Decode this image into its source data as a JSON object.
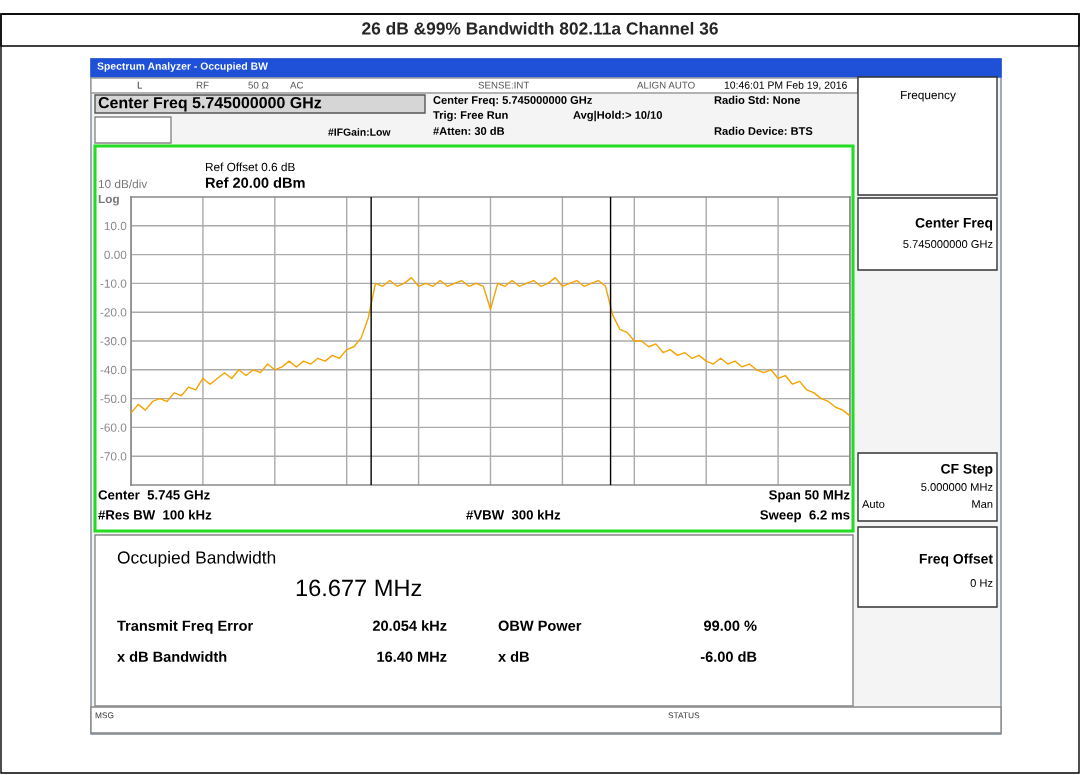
{
  "chart_data": {
    "type": "line",
    "title": "26 dB &99% Bandwidth 802.11a Channel 36",
    "categories": [
      null,
      null,
      null,
      null,
      null,
      null,
      null,
      null,
      null,
      null,
      null,
      null,
      null,
      null,
      null,
      null,
      null,
      null,
      null,
      null,
      null,
      null,
      null,
      null,
      null,
      null,
      null,
      null,
      null,
      null,
      null,
      null,
      null,
      null,
      null,
      null,
      null,
      null,
      null,
      null,
      null,
      null,
      null,
      null,
      null,
      null,
      null,
      null,
      null,
      null,
      null,
      null,
      null,
      null,
      null,
      null,
      null,
      null,
      null,
      null,
      null,
      null,
      null,
      null,
      null,
      null,
      null,
      null,
      null,
      null,
      null,
      null,
      null,
      null,
      null,
      null,
      null,
      null,
      null,
      null,
      null,
      null,
      null,
      null,
      null,
      null,
      null,
      null,
      null,
      null,
      null,
      null,
      null,
      null,
      null,
      null,
      null,
      null,
      null,
      null,
      null
    ],
    "series": [
      {
        "color": "#f5a300",
        "values": [
          -55,
          -52,
          -54,
          -51,
          -50,
          -51,
          -48,
          -49,
          -46,
          -47,
          -43,
          -45,
          -43,
          -41,
          -43,
          -40,
          -42,
          -40,
          -41,
          -38,
          -40,
          -39,
          -37,
          -39,
          -37,
          -38,
          -36,
          -37,
          -35,
          -36,
          -33,
          -32,
          -29,
          -22,
          -10,
          -11,
          -9,
          -11,
          -10,
          -8,
          -11,
          -10,
          -11,
          -9,
          -11,
          -10,
          -9,
          -11,
          -10,
          -11,
          -19,
          -10,
          -11,
          -9,
          -11,
          -10,
          -9,
          -11,
          -10,
          -8,
          -11,
          -10,
          -9,
          -11,
          -10,
          -9,
          -11,
          -21,
          -26,
          -27,
          -30,
          -30,
          -32,
          -31,
          -34,
          -33,
          -35,
          -34,
          -36,
          -35,
          -37,
          -38,
          -36,
          -38,
          -37,
          -39,
          -38,
          -40,
          -41,
          -40,
          -43,
          -42,
          -45,
          -44,
          -47,
          -48,
          -50,
          -51,
          -53,
          -54,
          -56
        ]
      }
    ],
    "ylim": [
      -80,
      20
    ],
    "yticks": [
      {
        "value": 10,
        "label": "10.0"
      },
      {
        "value": 0,
        "label": "0.00"
      },
      {
        "value": -10,
        "label": "-10.0"
      },
      {
        "value": -20,
        "label": "-20.0"
      },
      {
        "value": -30,
        "label": "-30.0"
      },
      {
        "value": -40,
        "label": "-40.0"
      },
      {
        "value": -50,
        "label": "-50.0"
      },
      {
        "value": -60,
        "label": "-60.0"
      },
      {
        "value": -70,
        "label": "-70.0"
      }
    ],
    "tick_labels": "y",
    "grid": true,
    "annotations": [
      "Spectrum Analyzer - Occupied BW",
      "L",
      "RF",
      "50 Ω",
      "AC",
      "SENSE:INT",
      "ALIGN AUTO",
      "10:46:01 PM Feb 19, 2016",
      "Center Freq 5.745000000 GHz",
      "#IFGain:Low",
      "Center Freq: 5.745000000 GHz",
      "Trig: Free Run",
      "Avg|Hold:> 10/10",
      "#Atten: 30 dB",
      "Radio Std: None",
      "Radio Device: BTS",
      "Ref Offset 0.6 dB",
      "Ref 20.00 dBm",
      "10 dB/div",
      "Log",
      "Center  5.745 GHz",
      "#Res BW  100 kHz",
      "#VBW  300 kHz",
      "Span 50 MHz",
      "Sweep  6.2 ms",
      "Occupied Bandwidth",
      "16.677 MHz",
      "Transmit Freq Error",
      "20.054 kHz",
      "OBW Power",
      "99.00 %",
      "x dB Bandwidth",
      "16.40 MHz",
      "x dB",
      "-6.00 dB",
      "MSG",
      "STATUS",
      "Frequency",
      "Center Freq",
      "5.745000000 GHz",
      "CF Step",
      "5.000000 MHz",
      "Auto",
      "Man",
      "Freq Offset",
      "0 Hz"
    ]
  }
}
